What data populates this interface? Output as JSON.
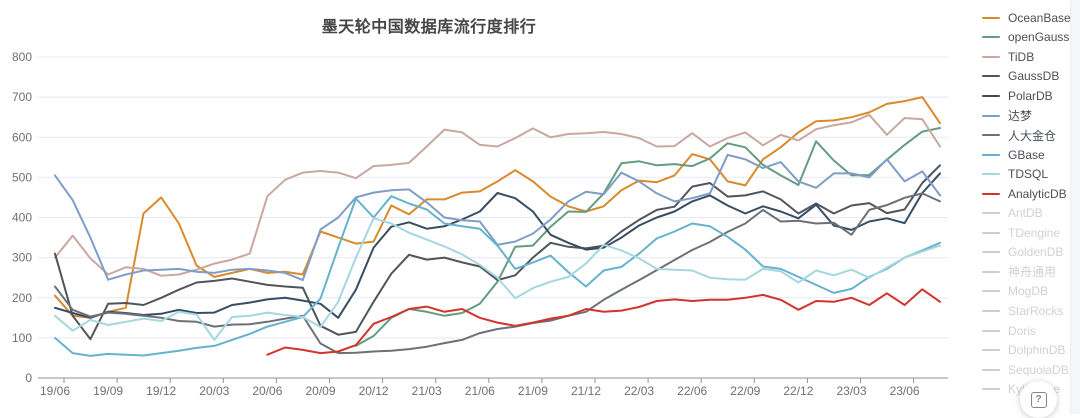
{
  "chart_data": {
    "type": "line",
    "title": "墨天轮中国数据库流行度排行",
    "ylabel": "",
    "xlabel": "",
    "ylim": [
      0,
      800
    ],
    "y_ticks": [
      0,
      100,
      200,
      300,
      400,
      500,
      600,
      700,
      800
    ],
    "grid": true,
    "legend_position": "right",
    "x": [
      "19/06",
      "19/07",
      "19/08",
      "19/09",
      "19/10",
      "19/11",
      "19/12",
      "20/01",
      "20/02",
      "20/03",
      "20/04",
      "20/05",
      "20/06",
      "20/07",
      "20/08",
      "20/09",
      "20/10",
      "20/11",
      "20/12",
      "21/01",
      "21/02",
      "21/03",
      "21/04",
      "21/05",
      "21/06",
      "21/07",
      "21/08",
      "21/09",
      "21/10",
      "21/11",
      "21/12",
      "22/01",
      "22/02",
      "22/03",
      "22/04",
      "22/05",
      "22/06",
      "22/07",
      "22/08",
      "22/09",
      "22/10",
      "22/11",
      "22/12",
      "23/01",
      "23/02",
      "23/03",
      "23/04",
      "23/05",
      "23/06",
      "23/07",
      "23/08"
    ],
    "x_tick_labels": [
      "19/06",
      "19/09",
      "19/12",
      "20/03",
      "20/06",
      "20/09",
      "20/12",
      "21/03",
      "21/06",
      "21/09",
      "21/12",
      "22/03",
      "22/06",
      "22/09",
      "22/12",
      "23/03",
      "23/06"
    ],
    "series": [
      {
        "name": "OceanBase",
        "color": "#d98a2b",
        "values": [
          205,
          155,
          150,
          165,
          175,
          410,
          450,
          385,
          280,
          252,
          262,
          272,
          262,
          265,
          258,
          365,
          350,
          335,
          340,
          430,
          408,
          445,
          445,
          462,
          465,
          490,
          518,
          490,
          452,
          428,
          415,
          428,
          468,
          492,
          488,
          505,
          558,
          545,
          490,
          480,
          545,
          575,
          612,
          640,
          642,
          650,
          662,
          683,
          690,
          700,
          635
        ]
      },
      {
        "name": "openGauss",
        "color": "#639c7e",
        "values": [
          null,
          null,
          null,
          null,
          null,
          null,
          null,
          null,
          null,
          null,
          null,
          null,
          null,
          null,
          null,
          null,
          null,
          80,
          105,
          150,
          172,
          165,
          155,
          162,
          185,
          240,
          327,
          330,
          377,
          415,
          414,
          460,
          535,
          540,
          530,
          533,
          528,
          547,
          585,
          575,
          531,
          505,
          481,
          590,
          542,
          505,
          506,
          544,
          581,
          614,
          623
        ]
      },
      {
        "name": "TiDB",
        "color": "#c8a8a0",
        "values": [
          300,
          355,
          298,
          258,
          276,
          272,
          255,
          258,
          270,
          285,
          295,
          310,
          453,
          494,
          512,
          516,
          512,
          498,
          528,
          531,
          536,
          577,
          619,
          612,
          581,
          577,
          598,
          622,
          600,
          608,
          610,
          613,
          608,
          598,
          577,
          578,
          610,
          577,
          598,
          612,
          580,
          606,
          592,
          620,
          630,
          637,
          656,
          606,
          648,
          645,
          577
        ]
      },
      {
        "name": "GaussDB",
        "color": "#50555c",
        "values": [
          310,
          155,
          97,
          185,
          187,
          182,
          200,
          220,
          238,
          242,
          248,
          240,
          232,
          228,
          225,
          130,
          108,
          115,
          190,
          260,
          307,
          295,
          300,
          288,
          278,
          244,
          256,
          300,
          337,
          327,
          323,
          330,
          365,
          394,
          419,
          427,
          477,
          486,
          452,
          455,
          465,
          445,
          410,
          435,
          410,
          430,
          436,
          411,
          420,
          486,
          530
        ]
      },
      {
        "name": "PolarDB",
        "color": "#374d63",
        "values": [
          175,
          162,
          150,
          165,
          162,
          157,
          160,
          170,
          162,
          163,
          182,
          188,
          196,
          200,
          193,
          185,
          150,
          220,
          325,
          377,
          388,
          372,
          378,
          395,
          415,
          461,
          448,
          415,
          357,
          337,
          320,
          325,
          350,
          380,
          400,
          415,
          440,
          455,
          430,
          410,
          428,
          415,
          398,
          432,
          380,
          369,
          390,
          398,
          386,
          461,
          510
        ]
      },
      {
        "name": "达梦",
        "color": "#7f9dc6",
        "values": [
          505,
          443,
          350,
          245,
          258,
          268,
          270,
          272,
          265,
          262,
          270,
          272,
          268,
          262,
          244,
          370,
          400,
          450,
          462,
          468,
          470,
          438,
          400,
          393,
          390,
          332,
          340,
          360,
          395,
          440,
          464,
          458,
          512,
          490,
          460,
          440,
          448,
          460,
          556,
          545,
          523,
          538,
          490,
          474,
          510,
          510,
          500,
          545,
          490,
          515,
          455
        ]
      },
      {
        "name": "人大金仓",
        "color": "#6d7177",
        "values": [
          228,
          170,
          153,
          163,
          160,
          155,
          150,
          142,
          140,
          128,
          133,
          134,
          140,
          148,
          155,
          86,
          62,
          63,
          66,
          68,
          72,
          78,
          87,
          95,
          112,
          122,
          128,
          137,
          143,
          155,
          165,
          195,
          220,
          244,
          269,
          294,
          319,
          339,
          364,
          385,
          419,
          390,
          392,
          385,
          387,
          357,
          419,
          431,
          449,
          460,
          440
        ]
      },
      {
        "name": "GBase",
        "color": "#66b2ce",
        "values": [
          100,
          62,
          55,
          60,
          58,
          56,
          62,
          68,
          75,
          80,
          95,
          110,
          128,
          140,
          152,
          198,
          325,
          447,
          400,
          453,
          435,
          420,
          385,
          378,
          372,
          330,
          272,
          288,
          305,
          264,
          228,
          268,
          277,
          310,
          348,
          365,
          385,
          378,
          352,
          320,
          278,
          272,
          252,
          232,
          212,
          222,
          252,
          272,
          300,
          318,
          337
        ]
      },
      {
        "name": "TDSQL",
        "color": "#a5d7e0",
        "values": [
          155,
          118,
          145,
          132,
          140,
          148,
          142,
          165,
          158,
          95,
          152,
          155,
          163,
          157,
          152,
          127,
          190,
          300,
          398,
          385,
          362,
          345,
          328,
          308,
          282,
          250,
          199,
          224,
          240,
          252,
          285,
          332,
          318,
          298,
          272,
          270,
          268,
          250,
          246,
          245,
          272,
          266,
          238,
          268,
          256,
          270,
          250,
          275,
          300,
          315,
          330
        ]
      },
      {
        "name": "AnalyticDB",
        "color": "#d2342c",
        "values": [
          null,
          null,
          null,
          null,
          null,
          null,
          null,
          null,
          null,
          null,
          null,
          null,
          58,
          76,
          70,
          62,
          66,
          82,
          135,
          152,
          172,
          178,
          165,
          172,
          150,
          138,
          130,
          138,
          148,
          155,
          172,
          165,
          168,
          177,
          192,
          196,
          192,
          195,
          195,
          200,
          207,
          195,
          170,
          192,
          190,
          200,
          182,
          211,
          182,
          221,
          190
        ]
      }
    ],
    "legend_inactive": [
      "AntDB",
      "TDengine",
      "GoldenDB",
      "神舟通用",
      "MogDB",
      "StarRocks",
      "Doris",
      "DolphinDB",
      "SequoiaDB",
      "Kyligence"
    ]
  },
  "colors": {
    "grid_line": "#e4e9f2",
    "axis_line": "#8d939c",
    "axis_label": "#6e7079",
    "title_text": "#464646",
    "legend_active_text": "#4a4f57",
    "legend_inactive_text": "#cdd1d7",
    "legend_inactive_line": "#c9cdd4"
  },
  "help_button": {
    "label": "?"
  }
}
